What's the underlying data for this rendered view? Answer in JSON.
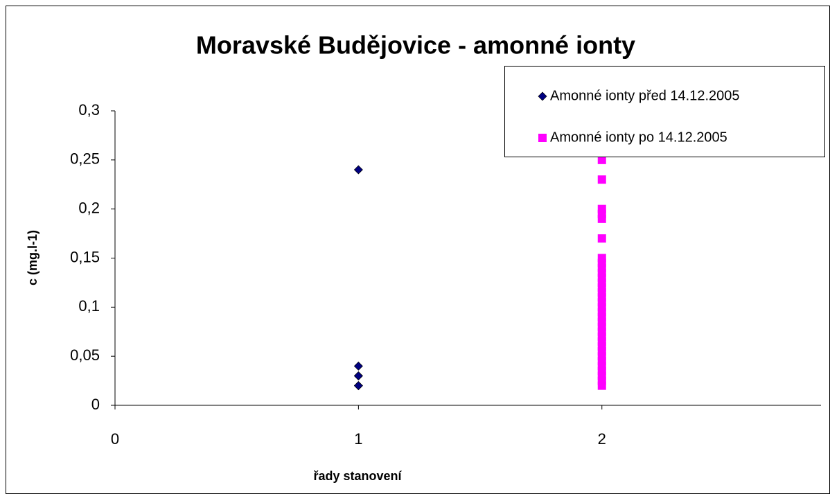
{
  "chart_data": {
    "type": "scatter",
    "title": "Moravské Budějovice - amonné ionty",
    "x_label": "řady stanovení",
    "y_label": "c (mg.l-1)",
    "series": [
      {
        "name": "Amonné ionty před 14.12.2005",
        "color": "#000080",
        "marker": "diamond",
        "x": [
          1,
          1,
          1,
          1,
          1,
          1
        ],
        "values": [
          0.24,
          0.04,
          0.03,
          0.03,
          0.02,
          0.02
        ]
      },
      {
        "name": "Amonné ionty po 14.12.2005",
        "color": "#ff00ff",
        "marker": "square",
        "x": [
          2,
          2,
          2,
          2,
          2,
          2,
          2,
          2,
          2,
          2,
          2,
          2,
          2,
          2,
          2,
          2,
          2,
          2,
          2,
          2,
          2,
          2,
          2,
          2,
          2,
          2,
          2,
          2,
          2,
          2,
          2,
          2,
          2
        ],
        "values": [
          0.25,
          0.23,
          0.2,
          0.195,
          0.19,
          0.17,
          0.15,
          0.145,
          0.14,
          0.135,
          0.13,
          0.125,
          0.12,
          0.115,
          0.11,
          0.105,
          0.1,
          0.095,
          0.09,
          0.085,
          0.08,
          0.075,
          0.07,
          0.065,
          0.06,
          0.055,
          0.05,
          0.045,
          0.04,
          0.035,
          0.03,
          0.025,
          0.02
        ]
      }
    ],
    "xlim": [
      0,
      2.9
    ],
    "xticks": [
      0,
      1,
      2
    ],
    "ylim": [
      0,
      0.3
    ],
    "yticks": [
      0,
      {
        "value": 0.05,
        "label": "0,05"
      },
      {
        "value": 0.1,
        "label": "0,1"
      },
      {
        "value": 0.15,
        "label": "0,15"
      },
      {
        "value": 0.2,
        "label": "0,2"
      },
      {
        "value": 0.25,
        "label": "0,25"
      },
      {
        "value": 0.3,
        "label": "0,3"
      }
    ],
    "grid": false,
    "legend": "upper right"
  }
}
